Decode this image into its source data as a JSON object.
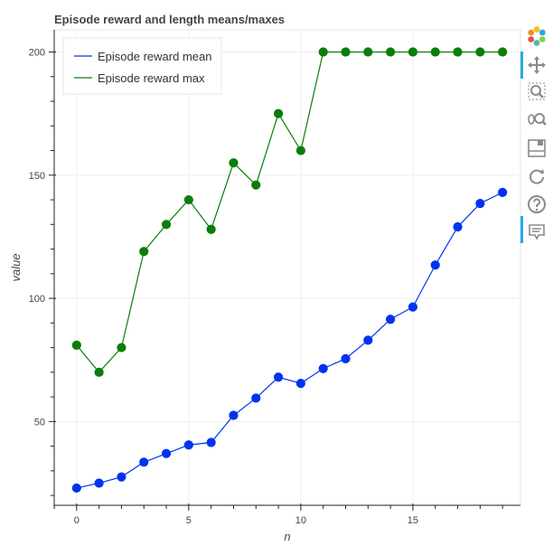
{
  "chart_data": {
    "type": "line",
    "title": "Episode reward and length means/maxes",
    "xlabel": "n",
    "ylabel": "value",
    "xlim": [
      -1,
      19.8
    ],
    "ylim": [
      16,
      209
    ],
    "x_ticks": [
      0,
      5,
      10,
      15
    ],
    "y_ticks": [
      50,
      100,
      150,
      200
    ],
    "grid": true,
    "legend_position": "top-left",
    "x": [
      0,
      1,
      2,
      3,
      4,
      5,
      6,
      7,
      8,
      9,
      10,
      11,
      12,
      13,
      14,
      15,
      16,
      17,
      18,
      19
    ],
    "series": [
      {
        "name": "Episode reward mean",
        "color": "#0033ee",
        "values": [
          23,
          25,
          27.5,
          33.5,
          37,
          40.5,
          41.5,
          52.5,
          59.5,
          68,
          65.5,
          71.5,
          75.5,
          83,
          91.5,
          96.5,
          113.5,
          129,
          138.5,
          143
        ]
      },
      {
        "name": "Episode reward max",
        "color": "#0b7d0b",
        "values": [
          81,
          70,
          80,
          119,
          130,
          140,
          128,
          155,
          146,
          175,
          160,
          200,
          200,
          200,
          200,
          200,
          200,
          200,
          200,
          200
        ]
      }
    ]
  },
  "toolbar": {
    "tools": [
      {
        "name": "bokeh-logo",
        "icon": "logo-icon",
        "active": false
      },
      {
        "name": "pan-tool",
        "icon": "move-arrows-icon",
        "active": true
      },
      {
        "name": "box-zoom-tool",
        "icon": "magnifier-icon",
        "active": false
      },
      {
        "name": "wheel-zoom-tool",
        "icon": "wheel-zoom-icon",
        "active": false
      },
      {
        "name": "save-tool",
        "icon": "save-icon",
        "active": false
      },
      {
        "name": "reset-tool",
        "icon": "reset-icon",
        "active": false
      },
      {
        "name": "help-tool",
        "icon": "help-icon",
        "active": false
      },
      {
        "name": "hover-tool",
        "icon": "hover-tooltip-icon",
        "active": true
      }
    ]
  }
}
